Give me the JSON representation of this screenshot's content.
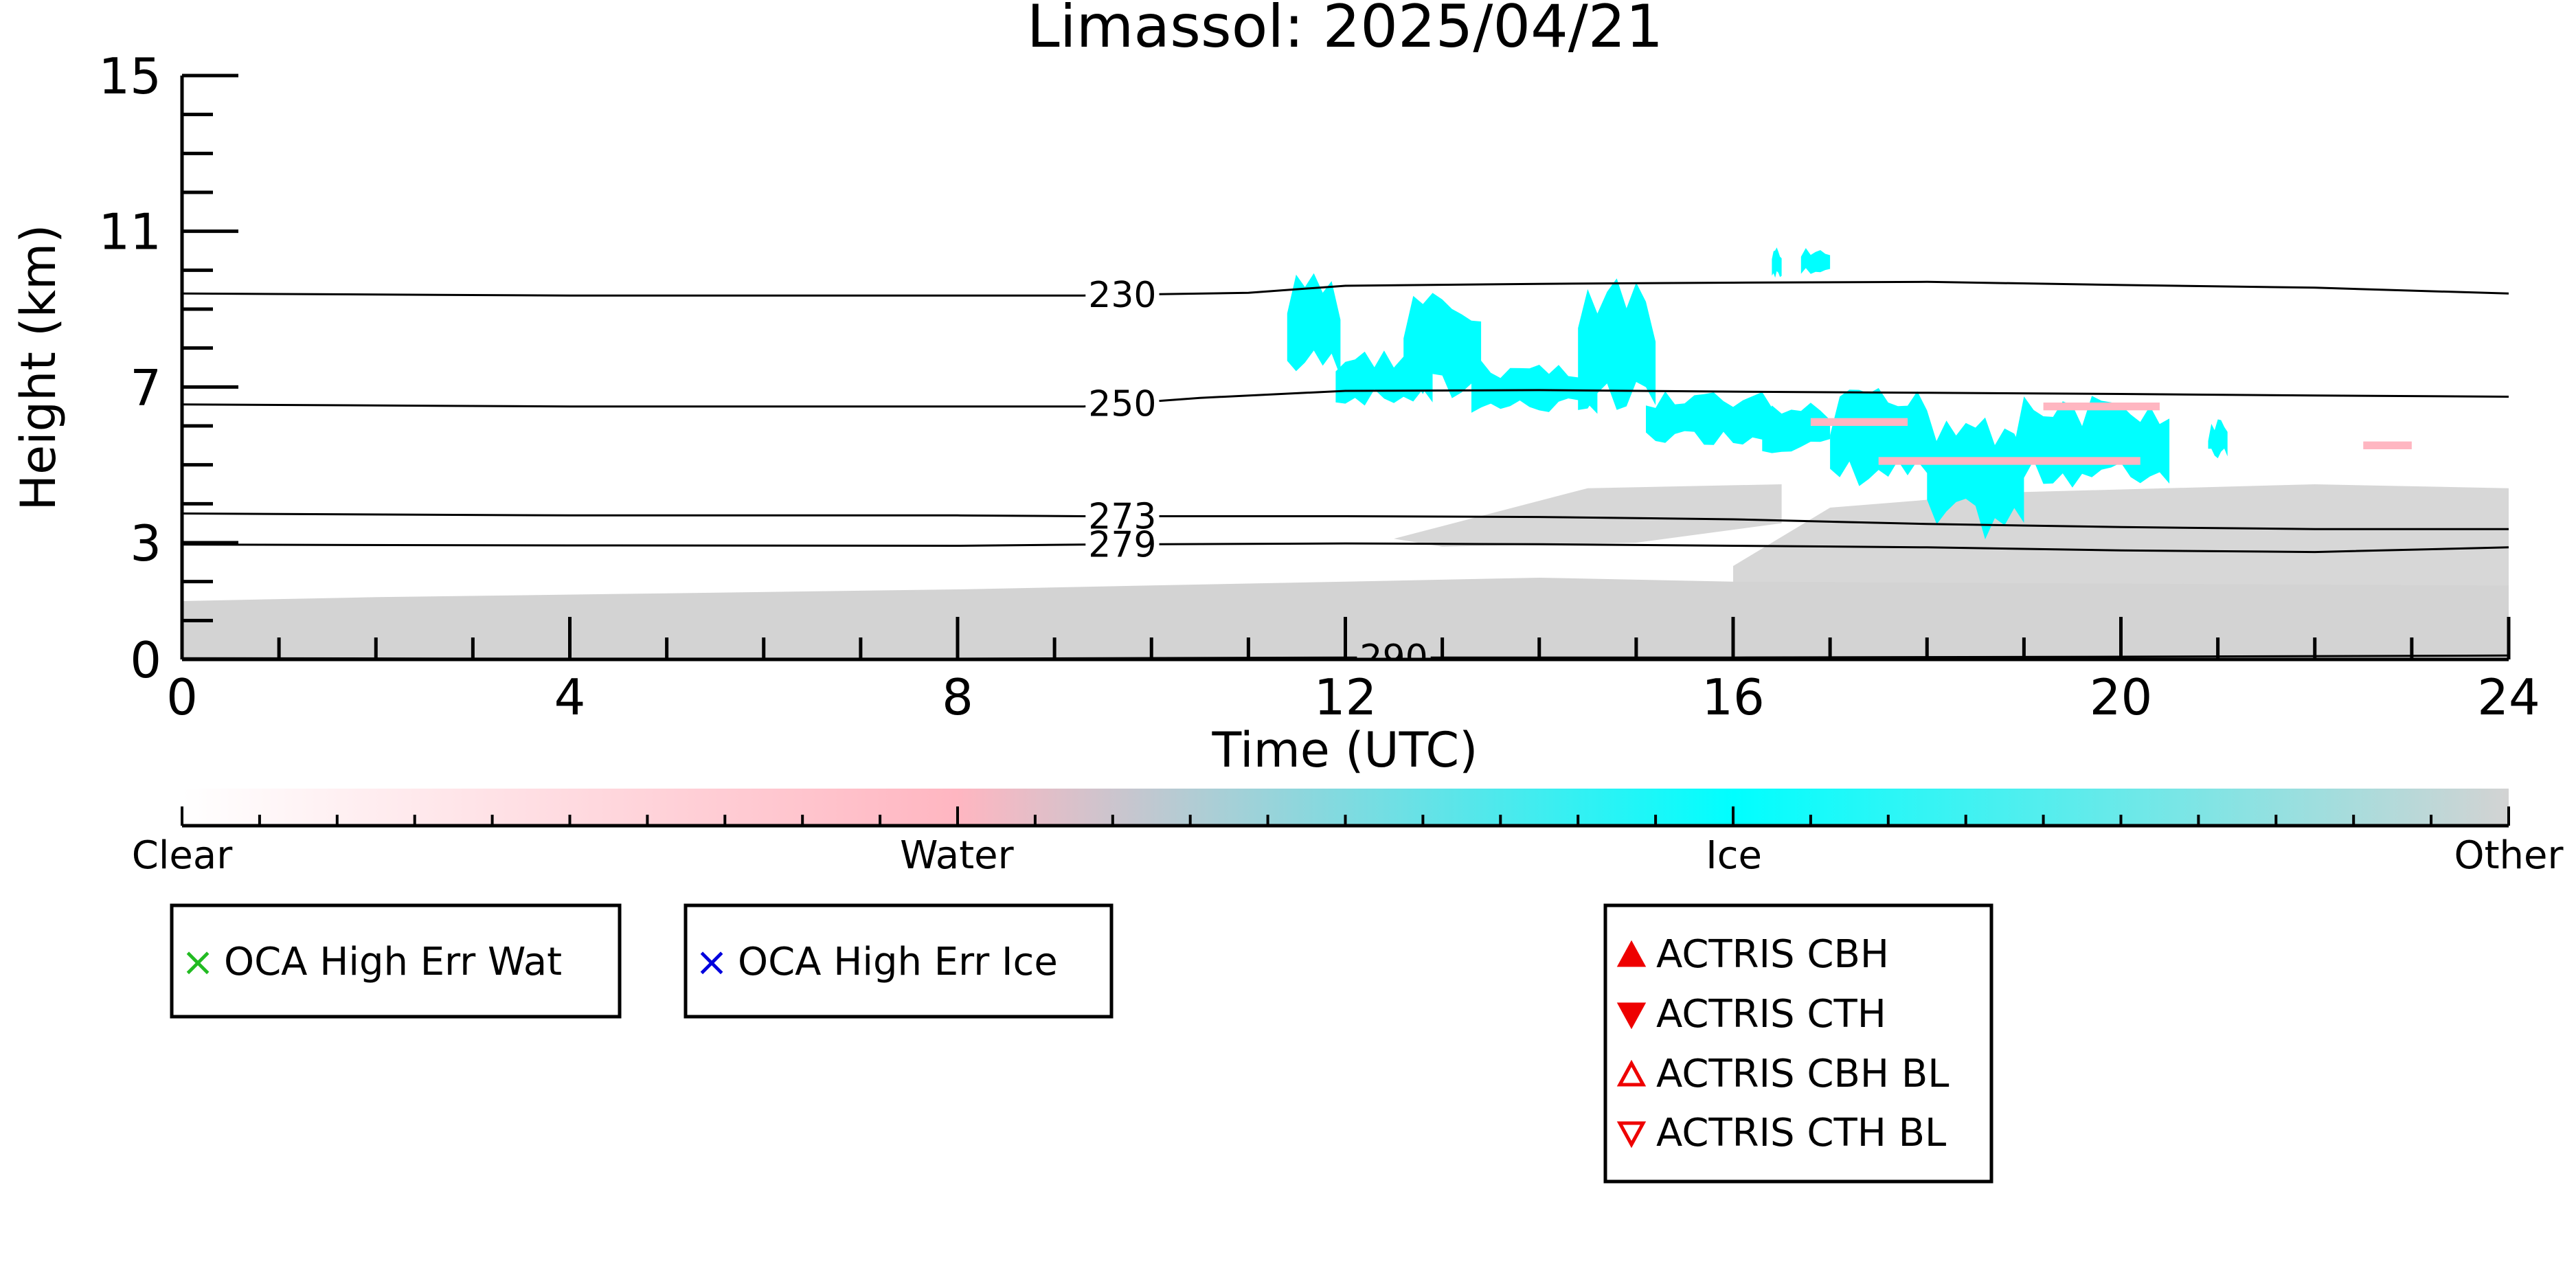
{
  "chart_data": {
    "type": "heatmap",
    "title": "Limassol: 2025/04/21",
    "xlabel": "Time (UTC)",
    "ylabel": "Height (km)",
    "xlim": [
      0,
      24
    ],
    "ylim": [
      0,
      15
    ],
    "x_ticks": [
      0,
      4,
      8,
      12,
      16,
      20,
      24
    ],
    "y_ticks": [
      0,
      3,
      7,
      11,
      15
    ],
    "classes": [
      "Clear",
      "Water",
      "Ice",
      "Other"
    ],
    "colorbar": {
      "labels": [
        "Clear",
        "Water",
        "Ice",
        "Other"
      ],
      "positions": [
        0,
        0.333,
        0.667,
        1.0
      ],
      "colors": [
        "#ffffff",
        "#ffb6c1",
        "#00ffff",
        "#d3d3d3"
      ]
    },
    "temperature_contours": [
      {
        "label": "230",
        "label_x": 9.7,
        "points": [
          [
            0,
            9.4
          ],
          [
            4,
            9.35
          ],
          [
            8,
            9.35
          ],
          [
            9.3,
            9.35
          ],
          [
            11,
            9.42
          ],
          [
            12,
            9.6
          ],
          [
            14,
            9.65
          ],
          [
            16,
            9.68
          ],
          [
            18,
            9.7
          ],
          [
            20,
            9.62
          ],
          [
            22,
            9.55
          ],
          [
            24,
            9.4
          ]
        ]
      },
      {
        "label": "250",
        "label_x": 9.7,
        "points": [
          [
            0,
            6.55
          ],
          [
            4,
            6.5
          ],
          [
            8,
            6.5
          ],
          [
            9.3,
            6.5
          ],
          [
            10.5,
            6.72
          ],
          [
            12,
            6.9
          ],
          [
            14,
            6.92
          ],
          [
            16,
            6.88
          ],
          [
            18,
            6.85
          ],
          [
            20,
            6.82
          ],
          [
            22,
            6.78
          ],
          [
            24,
            6.75
          ]
        ]
      },
      {
        "label": "273",
        "label_x": 9.7,
        "points": [
          [
            0,
            3.75
          ],
          [
            4,
            3.7
          ],
          [
            8,
            3.7
          ],
          [
            9.3,
            3.68
          ],
          [
            12,
            3.68
          ],
          [
            14,
            3.66
          ],
          [
            16,
            3.6
          ],
          [
            18,
            3.48
          ],
          [
            20,
            3.4
          ],
          [
            22,
            3.35
          ],
          [
            24,
            3.35
          ]
        ]
      },
      {
        "label": "279",
        "label_x": 9.7,
        "points": [
          [
            0,
            2.95
          ],
          [
            4,
            2.93
          ],
          [
            8,
            2.92
          ],
          [
            9.3,
            2.95
          ],
          [
            12,
            2.98
          ],
          [
            14,
            2.96
          ],
          [
            16,
            2.92
          ],
          [
            18,
            2.88
          ],
          [
            20,
            2.8
          ],
          [
            22,
            2.76
          ],
          [
            24,
            2.88
          ]
        ]
      },
      {
        "label": "290",
        "label_x": 12.5,
        "points": [
          [
            0,
            0.03
          ],
          [
            4,
            0.02
          ],
          [
            8,
            0.02
          ],
          [
            12,
            0.05
          ],
          [
            16,
            0.05
          ],
          [
            20,
            0.07
          ],
          [
            24,
            0.1
          ]
        ]
      }
    ],
    "ice_regions": [
      {
        "t_start": 11.4,
        "t_end": 11.95,
        "h_top": 10.0,
        "h_base": 7.2
      },
      {
        "t_start": 11.9,
        "t_end": 12.9,
        "h_top": 8.0,
        "h_base": 6.5
      },
      {
        "t_start": 12.6,
        "t_end": 13.4,
        "h_top": 9.5,
        "h_base": 6.5
      },
      {
        "t_start": 13.3,
        "t_end": 14.6,
        "h_top": 7.7,
        "h_base": 6.3
      },
      {
        "t_start": 14.4,
        "t_end": 15.2,
        "h_top": 9.8,
        "h_base": 6.0
      },
      {
        "t_start": 15.1,
        "t_end": 16.4,
        "h_top": 6.9,
        "h_base": 5.5
      },
      {
        "t_start": 16.3,
        "t_end": 17.0,
        "h_top": 6.6,
        "h_base": 5.3
      },
      {
        "t_start": 17.0,
        "t_end": 18.1,
        "h_top": 7.0,
        "h_base": 4.4
      },
      {
        "t_start": 18.0,
        "t_end": 19.0,
        "h_top": 6.8,
        "h_base": 3.0
      },
      {
        "t_start": 18.9,
        "t_end": 20.5,
        "h_top": 6.8,
        "h_base": 4.4
      },
      {
        "t_start": 16.4,
        "t_end": 16.5,
        "h_top": 10.6,
        "h_base": 9.8
      },
      {
        "t_start": 16.7,
        "t_end": 17.0,
        "h_top": 10.6,
        "h_base": 9.9
      },
      {
        "t_start": 20.9,
        "t_end": 21.1,
        "h_top": 6.2,
        "h_base": 5.1
      }
    ],
    "water_regions": [
      {
        "t_start": 16.8,
        "t_end": 17.8,
        "h_top": 6.2,
        "h_base": 6.0
      },
      {
        "t_start": 17.5,
        "t_end": 20.2,
        "h_top": 5.2,
        "h_base": 5.0
      },
      {
        "t_start": 19.2,
        "t_end": 20.4,
        "h_top": 6.6,
        "h_base": 6.4
      },
      {
        "t_start": 22.5,
        "t_end": 23.0,
        "h_top": 5.6,
        "h_base": 5.4
      }
    ],
    "other_regions": [
      {
        "points": [
          [
            0,
            1.5
          ],
          [
            2,
            1.6
          ],
          [
            5,
            1.7
          ],
          [
            8,
            1.8
          ],
          [
            10,
            1.9
          ],
          [
            12,
            2.0
          ],
          [
            14,
            2.1
          ],
          [
            16,
            2.0
          ],
          [
            24,
            1.9
          ],
          [
            24,
            0
          ],
          [
            0,
            0
          ]
        ]
      },
      {
        "points": [
          [
            16,
            2.4
          ],
          [
            17,
            3.9
          ],
          [
            19,
            4.3
          ],
          [
            22,
            4.5
          ],
          [
            24,
            4.4
          ],
          [
            24,
            1.8
          ],
          [
            16,
            1.8
          ]
        ]
      },
      {
        "points": [
          [
            12.5,
            3.1
          ],
          [
            14.5,
            4.4
          ],
          [
            16.5,
            4.5
          ],
          [
            16.5,
            3.5
          ],
          [
            15,
            3.0
          ],
          [
            13,
            2.9
          ]
        ]
      }
    ],
    "legend_boxes": [
      {
        "label": "OCA High Err Wat",
        "symbol": "×",
        "color": "#22bb22"
      },
      {
        "label": "OCA High Err Ice",
        "symbol": "×",
        "color": "#0000dd"
      }
    ],
    "actris_legend": [
      {
        "label": "ACTRIS CBH",
        "marker": "triangle-up-filled",
        "color": "#ee0000"
      },
      {
        "label": "ACTRIS CTH",
        "marker": "triangle-down-filled",
        "color": "#ee0000"
      },
      {
        "label": "ACTRIS CBH BL",
        "marker": "triangle-up-open",
        "color": "#ee0000"
      },
      {
        "label": "ACTRIS CTH BL",
        "marker": "triangle-down-open",
        "color": "#ee0000"
      }
    ]
  }
}
